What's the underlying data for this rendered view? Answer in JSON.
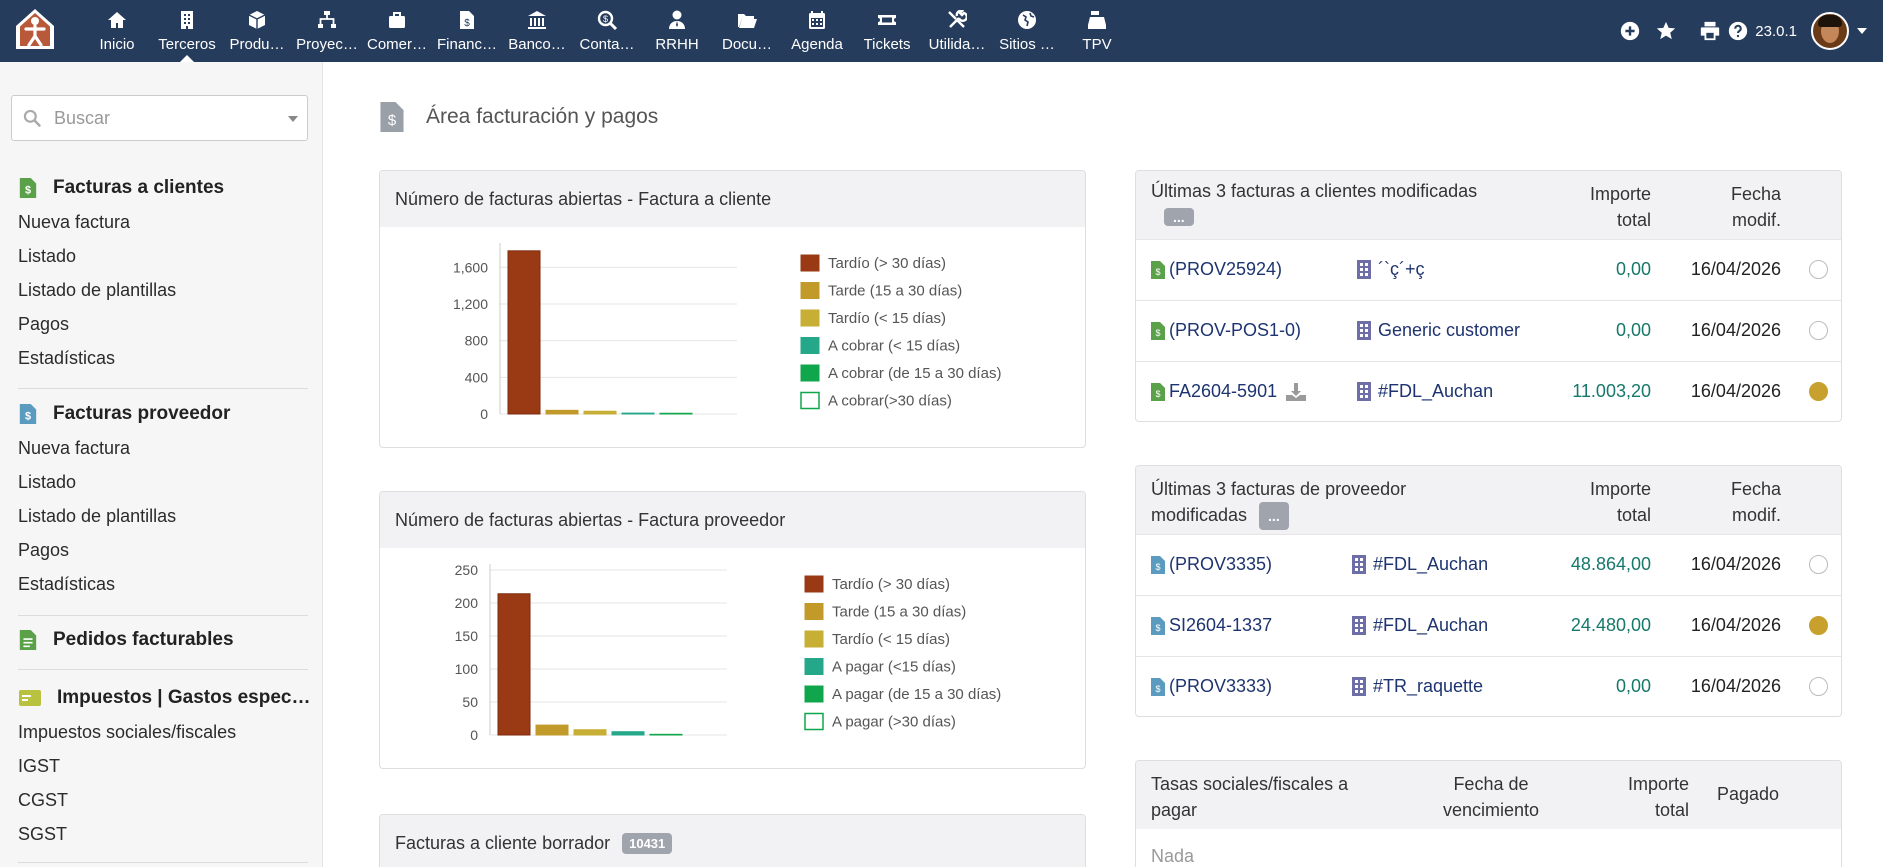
{
  "topbar": {
    "menu": [
      {
        "label": "Inicio",
        "icon": "home-icon"
      },
      {
        "label": "Terceros",
        "icon": "building-icon"
      },
      {
        "label": "Produ…",
        "icon": "cube-icon"
      },
      {
        "label": "Proyec…",
        "icon": "sitemap-icon"
      },
      {
        "label": "Comer…",
        "icon": "suitcase-icon"
      },
      {
        "label": "Financ…",
        "icon": "invoice-icon"
      },
      {
        "label": "Banco…",
        "icon": "bank-icon"
      },
      {
        "label": "Conta…",
        "icon": "search-dollar-icon"
      },
      {
        "label": "RRHH",
        "icon": "user-tie-icon"
      },
      {
        "label": "Docu…",
        "icon": "folder-open-icon"
      },
      {
        "label": "Agenda",
        "icon": "calendar-icon"
      },
      {
        "label": "Tickets",
        "icon": "ticket-icon"
      },
      {
        "label": "Utilida…",
        "icon": "tools-icon"
      },
      {
        "label": "Sitios …",
        "icon": "globe-icon"
      },
      {
        "label": "TPV",
        "icon": "cash-register-icon"
      }
    ],
    "active_index": 1,
    "version": "23.0.1"
  },
  "sidebar": {
    "search_placeholder": "Buscar",
    "sections": [
      {
        "title": "Facturas a clientes",
        "icon": "customer-invoice-icon",
        "links": [
          "Nueva factura",
          "Listado",
          "Listado de plantillas",
          "Pagos",
          "Estadísticas"
        ]
      },
      {
        "title": "Facturas proveedor",
        "icon": "supplier-invoice-icon",
        "links": [
          "Nueva factura",
          "Listado",
          "Listado de plantillas",
          "Pagos",
          "Estadísticas"
        ]
      },
      {
        "title": "Pedidos facturables",
        "icon": "billable-order-icon",
        "links": []
      },
      {
        "title": "Impuestos | Gastos espec…",
        "icon": "tax-card-icon",
        "links": [
          "Impuestos sociales/fiscales",
          "IGST",
          "CGST",
          "SGST"
        ]
      }
    ]
  },
  "main": {
    "title": "Área facturación y pagos",
    "chart1_title": "Número de facturas abiertas - Factura a cliente",
    "chart2_title": "Número de facturas abiertas - Factura proveedor",
    "draft_title": "Facturas a cliente borrador",
    "draft_count": "10431",
    "colors": {
      "late30": "#9a3a14",
      "late15_30": "#c19a2a",
      "late15": "#c7ae34",
      "due15": "#25a88a",
      "due15_30": "#10a64c",
      "due30": "#10a64c"
    }
  },
  "chart_data": [
    {
      "type": "bar",
      "title": "Número de facturas abiertas - Factura a cliente",
      "categories": [
        "Tardío (> 30 días)",
        "Tarde (15 a 30 días)",
        "Tardío (< 15 días)",
        "A cobrar (< 15 días)",
        "A cobrar (de 15 a 30 días)",
        "A cobrar(>30 días)"
      ],
      "values": [
        1780,
        40,
        30,
        10,
        8,
        0
      ],
      "yticks": [
        "0",
        "400",
        "800",
        "1,200",
        "1,600"
      ],
      "ylim": [
        0,
        1800
      ],
      "legend_position": "right",
      "grid": true
    },
    {
      "type": "bar",
      "title": "Número de facturas abiertas - Factura proveedor",
      "categories": [
        "Tardío (> 30 días)",
        "Tarde (15 a 30 días)",
        "Tardío (< 15 días)",
        "A pagar (<15 días)",
        "A pagar (de 15 a 30 días)",
        "A pagar (>30 días)"
      ],
      "values": [
        214,
        15,
        8,
        5,
        1,
        0
      ],
      "yticks": [
        "0",
        "50",
        "100",
        "150",
        "200",
        "250"
      ],
      "ylim": [
        0,
        250
      ],
      "legend_position": "right",
      "grid": true
    }
  ],
  "customer_invoices": {
    "title": "Últimas 3 facturas a clientes modificadas",
    "more": "...",
    "col_amount": [
      "Importe",
      "total"
    ],
    "col_date": [
      "Fecha",
      "modif."
    ],
    "rows": [
      {
        "ref": "(PROV25924)",
        "company": "´`ç´+ç",
        "amount": "0,00",
        "date": "16/04/2026",
        "status": "open",
        "download": false
      },
      {
        "ref": "(PROV-POS1-0)",
        "company": "Generic customer",
        "amount": "0,00",
        "date": "16/04/2026",
        "status": "open",
        "download": false
      },
      {
        "ref": "FA2604-5901",
        "company": "#FDL_Auchan",
        "amount": "11.003,20",
        "date": "16/04/2026",
        "status": "paid",
        "download": true
      }
    ]
  },
  "supplier_invoices": {
    "title": [
      "Últimas 3 facturas de proveedor",
      "modificadas"
    ],
    "more": "...",
    "col_amount": [
      "Importe",
      "total"
    ],
    "col_date": [
      "Fecha",
      "modif."
    ],
    "rows": [
      {
        "ref": "(PROV3335)",
        "company": "#FDL_Auchan",
        "amount": "48.864,00",
        "date": "16/04/2026",
        "status": "open"
      },
      {
        "ref": "SI2604-1337",
        "company": "#FDL_Auchan",
        "amount": "24.480,00",
        "date": "16/04/2026",
        "status": "paid"
      },
      {
        "ref": "(PROV3333)",
        "company": "#TR_raquette",
        "amount": "0,00",
        "date": "16/04/2026",
        "status": "open"
      }
    ]
  },
  "taxes": {
    "title": [
      "Tasas sociales/fiscales a",
      "pagar"
    ],
    "col_due": [
      "Fecha de",
      "vencimiento"
    ],
    "col_amount": [
      "Importe",
      "total"
    ],
    "col_paid": "Pagado",
    "empty": "Nada"
  }
}
